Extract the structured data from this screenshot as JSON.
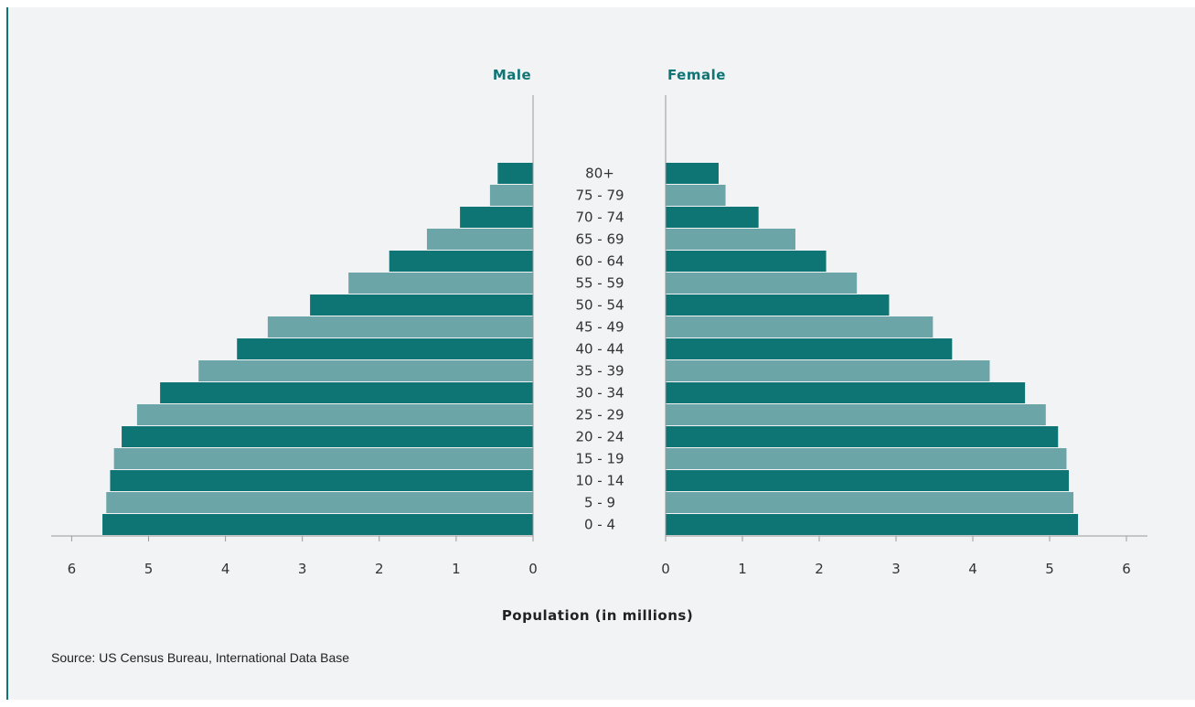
{
  "chart_data": {
    "type": "bar",
    "orientation": "horizontal",
    "categories": [
      "0 - 4",
      "5 - 9",
      "10 - 14",
      "15 - 19",
      "20 - 24",
      "25 - 29",
      "30 - 34",
      "35 - 39",
      "40 - 44",
      "45 - 49",
      "50 - 54",
      "55 - 59",
      "60 - 64",
      "65 - 69",
      "70 - 74",
      "75 - 79",
      "80+"
    ],
    "series": [
      {
        "name": "Male",
        "values": [
          5.6,
          5.55,
          5.5,
          5.45,
          5.35,
          5.15,
          4.85,
          4.35,
          3.85,
          3.45,
          2.9,
          2.4,
          1.87,
          1.38,
          0.95,
          0.56,
          0.46
        ]
      },
      {
        "name": "Female",
        "values": [
          5.37,
          5.31,
          5.25,
          5.22,
          5.11,
          4.95,
          4.68,
          4.22,
          3.73,
          3.48,
          2.91,
          2.49,
          2.09,
          1.69,
          1.21,
          0.78,
          0.69
        ]
      }
    ],
    "xlabel": "Population (in millions)",
    "xlim": [
      0,
      6
    ],
    "x_ticks": [
      0,
      1,
      2,
      3,
      4,
      5,
      6
    ],
    "grid": false,
    "legend": "pane labels at top of each side",
    "source": "Source: US Census Bureau, International Data Base"
  },
  "colors": {
    "dark_teal": "#0f7474",
    "light_teal": "#6ba5a8",
    "axis_line": "#999999",
    "text": "#333333",
    "panel_background": "#f2f3f5"
  }
}
